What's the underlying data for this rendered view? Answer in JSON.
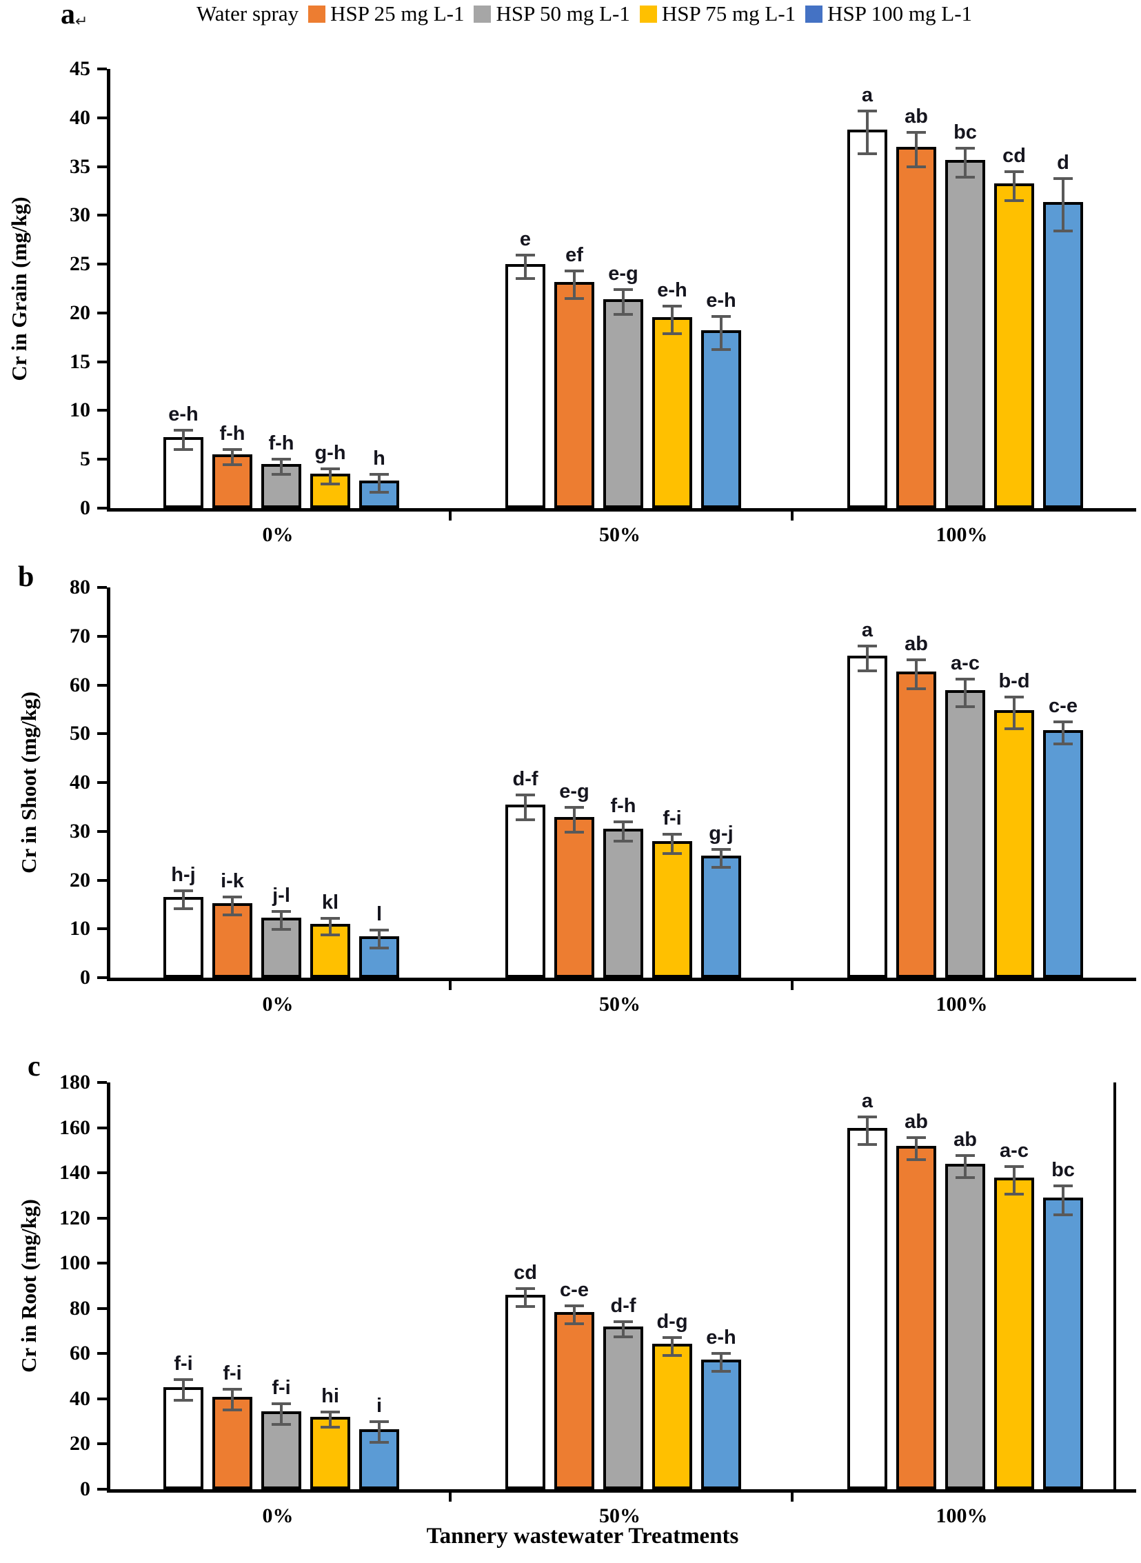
{
  "figure": {
    "panel_labels": [
      {
        "text": "a",
        "suffix": "↵"
      },
      {
        "text": "b",
        "suffix": ""
      },
      {
        "text": "c",
        "suffix": ""
      }
    ],
    "x_axis_title": "Tannery wastewater Treatments"
  },
  "legend": {
    "items": [
      {
        "label": "Water spray",
        "color": "#FFFFFF"
      },
      {
        "label": "HSP 25 mg L-1",
        "color": "#ED7D31"
      },
      {
        "label": "HSP 50 mg L-1",
        "color": "#A6A6A6"
      },
      {
        "label": "HSP 75 mg L-1",
        "color": "#FFC000"
      },
      {
        "label": "HSP 100 mg L-1",
        "color": "#4472C4"
      }
    ]
  },
  "chart_data": [
    {
      "type": "bar",
      "panel": "a",
      "title": "",
      "ylabel": "Cr in Grain (mg/kg)",
      "xlabel": "",
      "ylim": [
        0,
        45
      ],
      "ytick_step": 5,
      "grid": false,
      "legend_position": "top",
      "categories": [
        "0%",
        "50%",
        "100%"
      ],
      "series": [
        {
          "name": "Water spray",
          "color": "#FFFFFF",
          "values": [
            7.3,
            25.0,
            38.8
          ],
          "errors": [
            1.0,
            1.2,
            2.2
          ],
          "sig_letters": [
            "e-h",
            "e",
            "a"
          ]
        },
        {
          "name": "HSP 25 mg L-1",
          "color": "#ED7D31",
          "values": [
            5.5,
            23.2,
            37.0
          ],
          "errors": [
            0.8,
            1.4,
            1.8
          ],
          "sig_letters": [
            "f-h",
            "ef",
            "ab"
          ]
        },
        {
          "name": "HSP 50 mg L-1",
          "color": "#A6A6A6",
          "values": [
            4.5,
            21.4,
            35.7
          ],
          "errors": [
            0.8,
            1.3,
            1.5
          ],
          "sig_letters": [
            "f-h",
            "e-g",
            "bc"
          ]
        },
        {
          "name": "HSP 75 mg L-1",
          "color": "#FFC000",
          "values": [
            3.5,
            19.6,
            33.3
          ],
          "errors": [
            0.8,
            1.4,
            1.5
          ],
          "sig_letters": [
            "g-h",
            "e-h",
            "cd"
          ]
        },
        {
          "name": "HSP 100 mg L-1",
          "color": "#5B9BD5",
          "values": [
            2.8,
            18.2,
            31.4
          ],
          "errors": [
            0.9,
            1.7,
            2.7
          ],
          "sig_letters": [
            "h",
            "e-h",
            "d"
          ]
        }
      ]
    },
    {
      "type": "bar",
      "panel": "b",
      "title": "",
      "ylabel": "Cr in Shoot (mg/kg)",
      "xlabel": "",
      "ylim": [
        0,
        80
      ],
      "ytick_step": 10,
      "grid": false,
      "legend_position": "none",
      "categories": [
        "0%",
        "50%",
        "100%"
      ],
      "series": [
        {
          "name": "Water spray",
          "color": "#FFFFFF",
          "values": [
            16.5,
            35.5,
            66.0
          ],
          "errors": [
            1.8,
            2.5,
            2.5
          ],
          "sig_letters": [
            "h-j",
            "d-f",
            "a"
          ]
        },
        {
          "name": "HSP 25 mg L-1",
          "color": "#ED7D31",
          "values": [
            15.2,
            33.0,
            62.8
          ],
          "errors": [
            1.8,
            2.5,
            3.0
          ],
          "sig_letters": [
            "i-k",
            "e-g",
            "ab"
          ]
        },
        {
          "name": "HSP 50 mg L-1",
          "color": "#A6A6A6",
          "values": [
            12.3,
            30.5,
            59.0
          ],
          "errors": [
            1.8,
            2.0,
            2.8
          ],
          "sig_letters": [
            "j-l",
            "f-h",
            "a-c"
          ]
        },
        {
          "name": "HSP 75 mg L-1",
          "color": "#FFC000",
          "values": [
            11.0,
            28.0,
            54.8
          ],
          "errors": [
            1.7,
            2.0,
            3.2
          ],
          "sig_letters": [
            "kl",
            "f-i",
            "b-d"
          ]
        },
        {
          "name": "HSP 100 mg L-1",
          "color": "#5B9BD5",
          "values": [
            8.5,
            25.0,
            50.8
          ],
          "errors": [
            1.9,
            1.8,
            2.2
          ],
          "sig_letters": [
            "l",
            "g-j",
            "c-e"
          ]
        }
      ]
    },
    {
      "type": "bar",
      "panel": "c",
      "title": "",
      "ylabel": "Cr in Root (mg/kg)",
      "xlabel": "Tannery wastewater Treatments",
      "ylim": [
        0,
        180
      ],
      "ytick_step": 20,
      "grid": false,
      "legend_position": "none",
      "categories": [
        "0%",
        "50%",
        "100%"
      ],
      "series": [
        {
          "name": "Water spray",
          "color": "#FFFFFF",
          "values": [
            45.0,
            86.0,
            160.0
          ],
          "errors": [
            4.5,
            4.0,
            6.0
          ],
          "sig_letters": [
            "f-i",
            "cd",
            "a"
          ]
        },
        {
          "name": "HSP 25 mg L-1",
          "color": "#ED7D31",
          "values": [
            41.0,
            78.5,
            152.0
          ],
          "errors": [
            4.5,
            4.0,
            5.0
          ],
          "sig_letters": [
            "f-i",
            "c-e",
            "ab"
          ]
        },
        {
          "name": "HSP 50 mg L-1",
          "color": "#A6A6A6",
          "values": [
            34.5,
            72.0,
            144.0
          ],
          "errors": [
            4.5,
            3.5,
            5.0
          ],
          "sig_letters": [
            "f-i",
            "d-f",
            "ab"
          ]
        },
        {
          "name": "HSP 75 mg L-1",
          "color": "#FFC000",
          "values": [
            32.0,
            64.5,
            138.0
          ],
          "errors": [
            3.5,
            4.0,
            6.0
          ],
          "sig_letters": [
            "hi",
            "d-g",
            "a-c"
          ]
        },
        {
          "name": "HSP 100 mg L-1",
          "color": "#5B9BD5",
          "values": [
            26.5,
            57.5,
            129.0
          ],
          "errors": [
            4.5,
            4.0,
            6.5
          ],
          "sig_letters": [
            "i",
            "e-h",
            "bc"
          ]
        }
      ]
    }
  ]
}
